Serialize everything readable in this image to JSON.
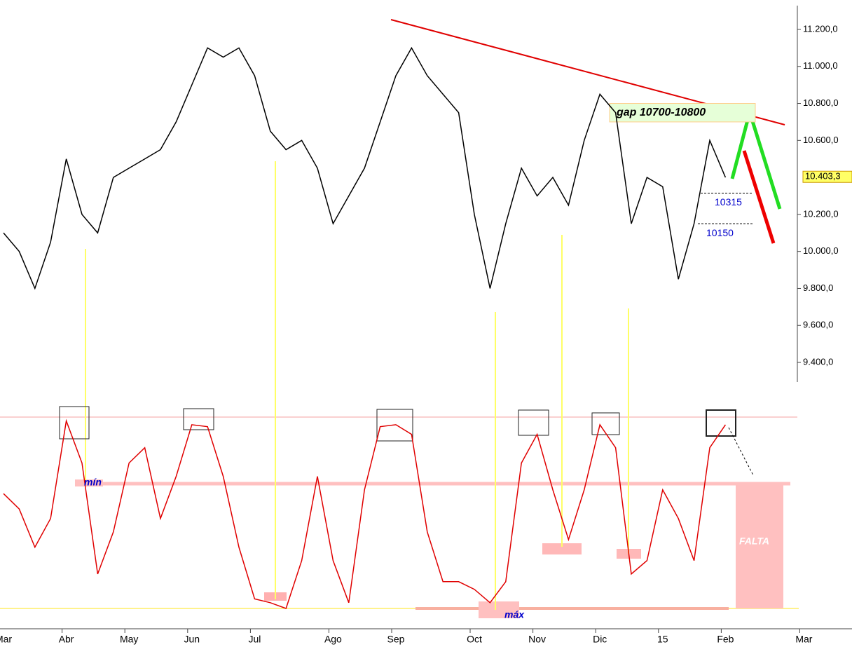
{
  "chart_data": [
    {
      "type": "line",
      "color": "#000000",
      "values": [
        10100,
        10000,
        9800,
        10050,
        10500,
        10200,
        10100,
        10400,
        10450,
        10500,
        10550,
        10700,
        10900,
        11100,
        11050,
        11100,
        10950,
        10650,
        10550,
        10600,
        10450,
        10150,
        10300,
        10450,
        10700,
        10950,
        11100,
        10950,
        10850,
        10750,
        10200,
        9800,
        10150,
        10450,
        10300,
        10400,
        10250,
        10600,
        10850,
        10750,
        10150,
        10400,
        10350,
        9850,
        10150,
        10600,
        10400,
        null,
        null,
        null,
        null,
        null
      ],
      "ylim": [
        9294,
        11359
      ],
      "yticks": [
        {
          "value": 11200,
          "label": "11.200,0"
        },
        {
          "value": 11000,
          "label": "11.000,0"
        },
        {
          "value": 10800,
          "label": "10.800,0"
        },
        {
          "value": 10600,
          "label": "10.600,0"
        },
        {
          "value": 10200,
          "label": "10.200,0"
        },
        {
          "value": 10000,
          "label": "10.000,0"
        },
        {
          "value": 9800,
          "label": "9.800,0"
        },
        {
          "value": 9600,
          "label": "9.600,0"
        },
        {
          "value": 9400,
          "label": "9.400,0"
        }
      ],
      "last_price": {
        "value": 10403.3,
        "label": "10.403,3"
      },
      "gap": {
        "label": "gap 10700-10800",
        "range": [
          10700,
          10800
        ]
      },
      "levels": [
        10315,
        10150
      ]
    },
    {
      "type": "line",
      "color": "#e00000",
      "categories": [
        "Mar",
        null,
        null,
        null,
        "Abr",
        null,
        null,
        null,
        "May",
        null,
        null,
        null,
        "Jun",
        null,
        null,
        null,
        "Jul",
        null,
        null,
        null,
        null,
        "Ago",
        null,
        null,
        null,
        "Sep",
        null,
        null,
        null,
        null,
        "Oct",
        null,
        null,
        null,
        "Nov",
        null,
        null,
        null,
        "Dic",
        null,
        null,
        null,
        "15",
        null,
        null,
        null,
        "Feb",
        null,
        null,
        null,
        null,
        "Mar"
      ],
      "values": [
        60,
        52,
        32,
        47,
        98,
        76,
        18,
        40,
        76,
        84,
        47,
        69,
        96,
        95,
        69,
        32,
        5,
        3,
        0,
        25,
        69,
        25,
        3,
        62,
        95,
        96,
        91,
        40,
        14,
        14,
        10,
        3,
        14,
        76,
        91,
        62,
        36,
        62,
        96,
        84,
        18,
        25,
        62,
        47,
        25,
        84,
        96,
        null,
        null,
        null,
        null,
        null
      ],
      "ylim": [
        0,
        100
      ],
      "annotations": [
        "mín",
        "máx",
        "FALTA"
      ]
    }
  ]
}
